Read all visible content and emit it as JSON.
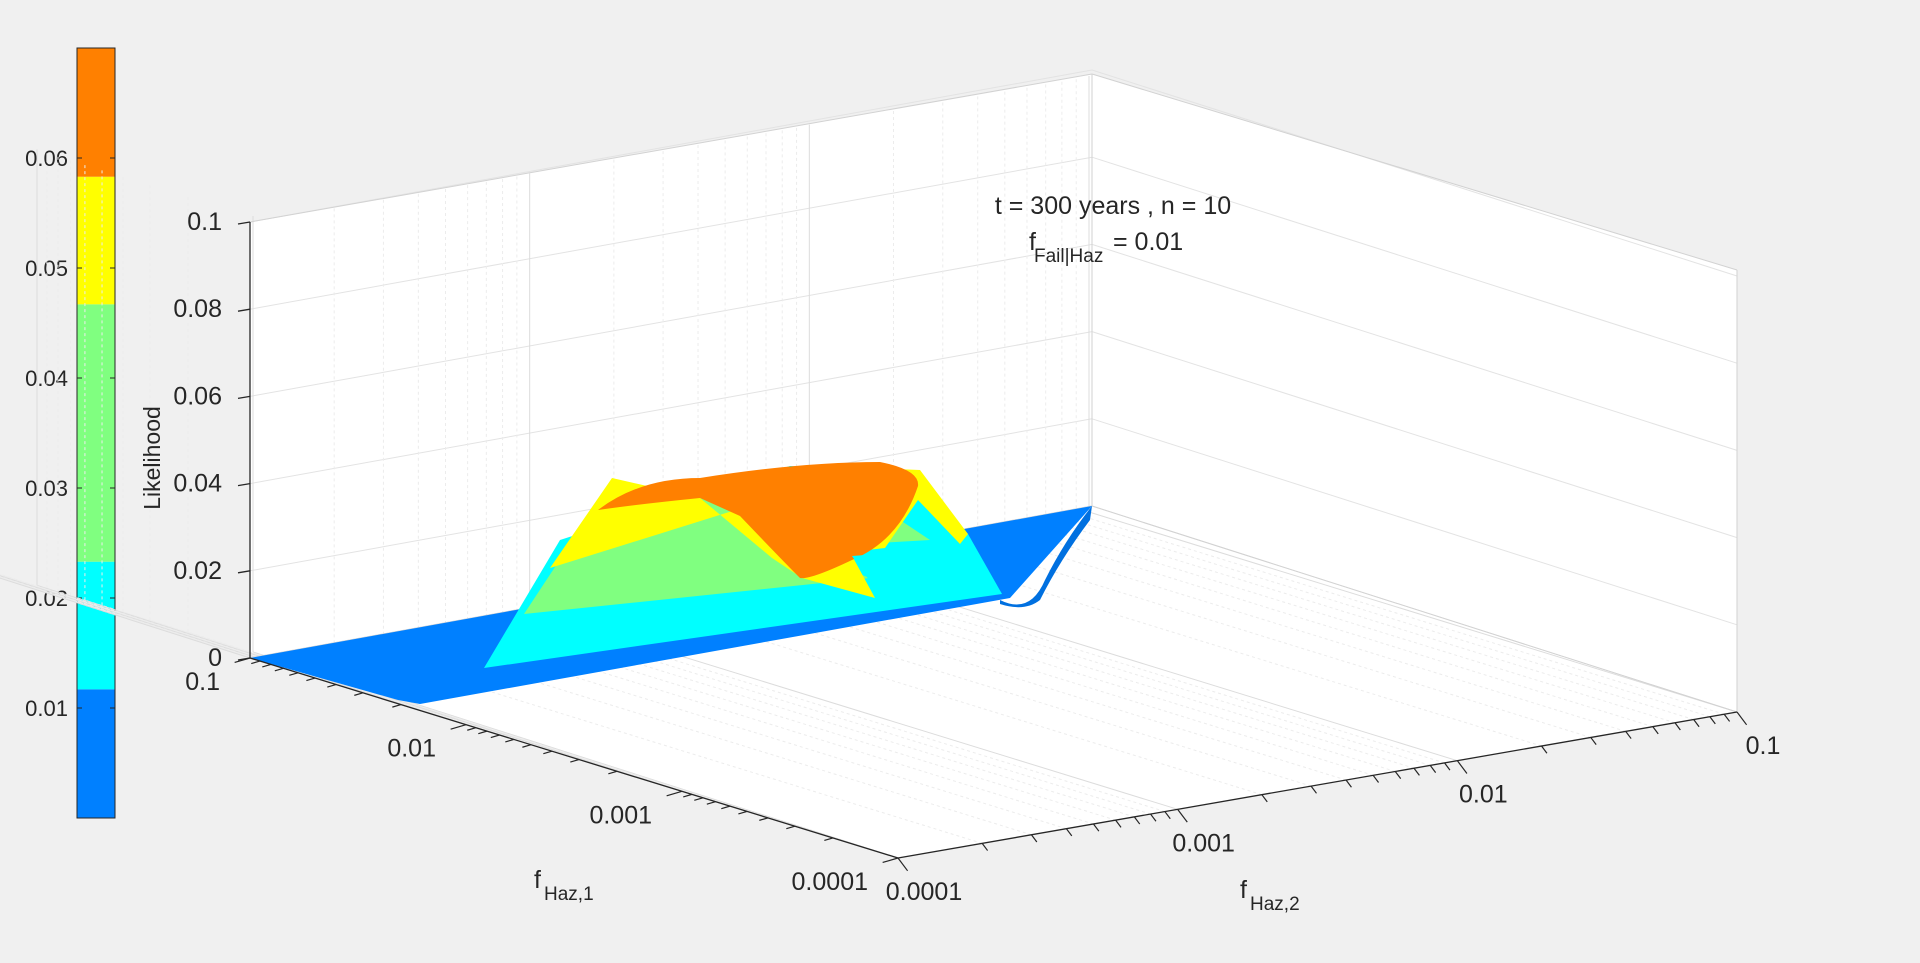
{
  "chart_data": {
    "type": "surface3d",
    "title_lines": [
      "t = 300 years , n = 10",
      "f",
      "Fail|Haz",
      " = 0.01"
    ],
    "zlabel": "Likelihood",
    "xlabel": {
      "base": "f",
      "sub": "Haz,1"
    },
    "ylabel": {
      "base": "f",
      "sub": "Haz,2"
    },
    "z_ticks": [
      "0",
      "0.02",
      "0.04",
      "0.06",
      "0.08",
      "0.1"
    ],
    "z_tick_values": [
      0,
      0.02,
      0.04,
      0.06,
      0.08,
      0.1
    ],
    "zlim": [
      0,
      0.1
    ],
    "x_axis_scale": "log",
    "y_axis_scale": "log",
    "x_ticks": [
      "0.1",
      "0.01",
      "0.001",
      "0.0001"
    ],
    "y_ticks": [
      "0.0001",
      "0.001",
      "0.01",
      "0.1"
    ],
    "xlim": [
      0.0001,
      0.1
    ],
    "ylim": [
      0.0001,
      0.1
    ],
    "grid": true,
    "surface_peak_likelihood": 0.065,
    "colorbar": {
      "placement": "left",
      "ticks": [
        "0.01",
        "0.02",
        "0.03",
        "0.04",
        "0.05",
        "0.06"
      ],
      "tick_values": [
        0.01,
        0.02,
        0.03,
        0.04,
        0.05,
        0.06
      ],
      "range": [
        0,
        0.07
      ],
      "bands": [
        {
          "from": 0.0,
          "to": 0.0117,
          "color": "#0080ff"
        },
        {
          "from": 0.0117,
          "to": 0.0233,
          "color": "#00ffff"
        },
        {
          "from": 0.0233,
          "to": 0.035,
          "color": "#80ff80"
        },
        {
          "from": 0.035,
          "to": 0.0467,
          "color": "#80ff80"
        },
        {
          "from": 0.0467,
          "to": 0.0583,
          "color": "#ffff00"
        },
        {
          "from": 0.0583,
          "to": 0.07,
          "color": "#ff8000"
        }
      ]
    }
  }
}
